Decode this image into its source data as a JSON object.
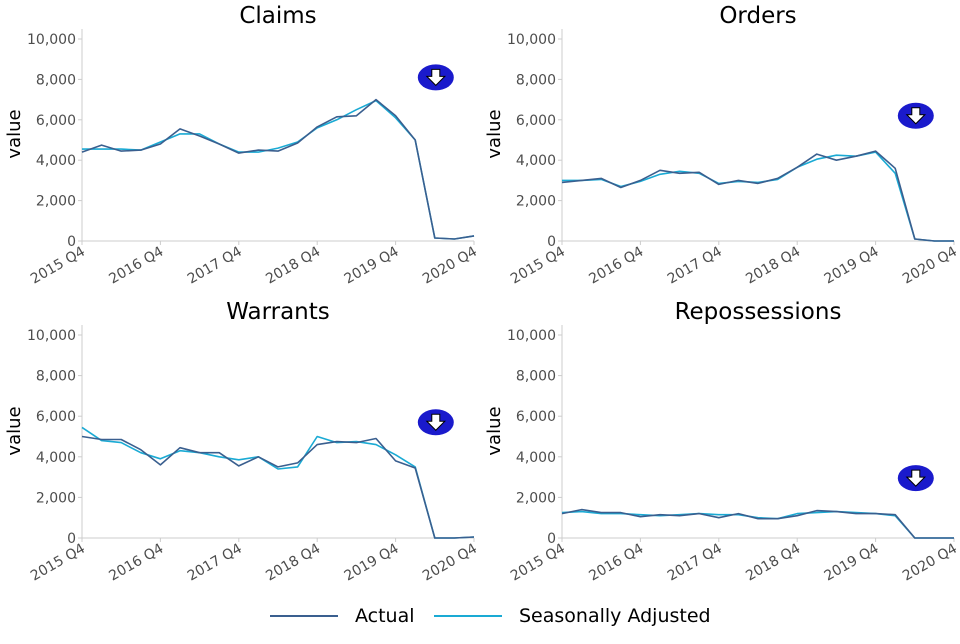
{
  "colors": {
    "actual": "#3a5f8f",
    "adjusted": "#1aaad4",
    "arrow_badge": "#1a1acc",
    "axis": "#cccccc"
  },
  "legend": [
    "Actual",
    "Seasonally Adjusted"
  ],
  "chart_data": [
    {
      "type": "line",
      "title": "Claims",
      "ylabel": "value",
      "ylim": [
        0,
        10000
      ],
      "yticks": [
        0,
        2000,
        4000,
        6000,
        8000,
        10000
      ],
      "ytick_labels": [
        "0",
        "2,000",
        "4,000",
        "6,000",
        "8,000",
        "10,000"
      ],
      "x": [
        "2015 Q4",
        "2016 Q1",
        "2016 Q2",
        "2016 Q3",
        "2016 Q4",
        "2017 Q1",
        "2017 Q2",
        "2017 Q3",
        "2017 Q4",
        "2018 Q1",
        "2018 Q2",
        "2018 Q3",
        "2018 Q4",
        "2019 Q1",
        "2019 Q2",
        "2019 Q3",
        "2019 Q4",
        "2020 Q1",
        "2020 Q2",
        "2020 Q3",
        "2020 Q4"
      ],
      "xtick_labels": [
        "2015 Q4",
        "2016 Q4",
        "2017 Q4",
        "2018 Q4",
        "2019 Q4",
        "2020 Q4"
      ],
      "series": [
        {
          "name": "Actual",
          "values": [
            4400,
            4750,
            4450,
            4500,
            4800,
            5550,
            5200,
            4800,
            4350,
            4500,
            4450,
            4850,
            5650,
            6150,
            6200,
            7000,
            6200,
            5000,
            150,
            100,
            250
          ]
        },
        {
          "name": "Seasonally Adjusted",
          "values": [
            4550,
            4550,
            4550,
            4500,
            4900,
            5300,
            5300,
            4800,
            4400,
            4400,
            4600,
            4900,
            5600,
            6000,
            6500,
            6950,
            6100,
            5000,
            150,
            100,
            250
          ]
        }
      ],
      "indicator": {
        "direction": "down",
        "value": 8100
      }
    },
    {
      "type": "line",
      "title": "Orders",
      "ylabel": "value",
      "ylim": [
        0,
        10000
      ],
      "yticks": [
        0,
        2000,
        4000,
        6000,
        8000,
        10000
      ],
      "ytick_labels": [
        "0",
        "2,000",
        "4,000",
        "6,000",
        "8,000",
        "10,000"
      ],
      "x": [
        "2015 Q4",
        "2016 Q1",
        "2016 Q2",
        "2016 Q3",
        "2016 Q4",
        "2017 Q1",
        "2017 Q2",
        "2017 Q3",
        "2017 Q4",
        "2018 Q1",
        "2018 Q2",
        "2018 Q3",
        "2018 Q4",
        "2019 Q1",
        "2019 Q2",
        "2019 Q3",
        "2019 Q4",
        "2020 Q1",
        "2020 Q2",
        "2020 Q3",
        "2020 Q4"
      ],
      "xtick_labels": [
        "2015 Q4",
        "2016 Q4",
        "2017 Q4",
        "2018 Q4",
        "2019 Q4",
        "2020 Q4"
      ],
      "series": [
        {
          "name": "Actual",
          "values": [
            2900,
            3000,
            3100,
            2650,
            3000,
            3500,
            3350,
            3400,
            2800,
            3000,
            2850,
            3100,
            3650,
            4300,
            4000,
            4200,
            4450,
            3600,
            100,
            0,
            0
          ]
        },
        {
          "name": "Seasonally Adjusted",
          "values": [
            3000,
            3000,
            3050,
            2700,
            2950,
            3300,
            3450,
            3350,
            2850,
            2950,
            2900,
            3050,
            3650,
            4050,
            4250,
            4200,
            4400,
            3350,
            100,
            0,
            0
          ]
        }
      ],
      "indicator": {
        "direction": "down",
        "value": 6200
      }
    },
    {
      "type": "line",
      "title": "Warrants",
      "ylabel": "value",
      "ylim": [
        0,
        10000
      ],
      "yticks": [
        0,
        2000,
        4000,
        6000,
        8000,
        10000
      ],
      "ytick_labels": [
        "0",
        "2,000",
        "4,000",
        "6,000",
        "8,000",
        "10,000"
      ],
      "x": [
        "2015 Q4",
        "2016 Q1",
        "2016 Q2",
        "2016 Q3",
        "2016 Q4",
        "2017 Q1",
        "2017 Q2",
        "2017 Q3",
        "2017 Q4",
        "2018 Q1",
        "2018 Q2",
        "2018 Q3",
        "2018 Q4",
        "2019 Q1",
        "2019 Q2",
        "2019 Q3",
        "2019 Q4",
        "2020 Q1",
        "2020 Q2",
        "2020 Q3",
        "2020 Q4"
      ],
      "xtick_labels": [
        "2015 Q4",
        "2016 Q4",
        "2017 Q4",
        "2018 Q4",
        "2019 Q4",
        "2020 Q4"
      ],
      "series": [
        {
          "name": "Actual",
          "values": [
            5000,
            4850,
            4850,
            4350,
            3600,
            4450,
            4200,
            4200,
            3550,
            4000,
            3500,
            3700,
            4600,
            4750,
            4700,
            4900,
            3800,
            3450,
            0,
            0,
            50
          ]
        },
        {
          "name": "Seasonally Adjusted",
          "values": [
            5450,
            4800,
            4700,
            4200,
            3900,
            4300,
            4200,
            4000,
            3850,
            4000,
            3400,
            3500,
            5000,
            4700,
            4750,
            4600,
            4100,
            3500,
            0,
            0,
            50
          ]
        }
      ],
      "indicator": {
        "direction": "down",
        "value": 5700
      }
    },
    {
      "type": "line",
      "title": "Repossessions",
      "ylabel": "value",
      "ylim": [
        0,
        10000
      ],
      "yticks": [
        0,
        2000,
        4000,
        6000,
        8000,
        10000
      ],
      "ytick_labels": [
        "0",
        "2,000",
        "4,000",
        "6,000",
        "8,000",
        "10,000"
      ],
      "x": [
        "2015 Q4",
        "2016 Q1",
        "2016 Q2",
        "2016 Q3",
        "2016 Q4",
        "2017 Q1",
        "2017 Q2",
        "2017 Q3",
        "2017 Q4",
        "2018 Q1",
        "2018 Q2",
        "2018 Q3",
        "2018 Q4",
        "2019 Q1",
        "2019 Q2",
        "2019 Q3",
        "2019 Q4",
        "2020 Q1",
        "2020 Q2",
        "2020 Q3",
        "2020 Q4"
      ],
      "xtick_labels": [
        "2015 Q4",
        "2016 Q4",
        "2017 Q4",
        "2018 Q4",
        "2019 Q4",
        "2020 Q4"
      ],
      "series": [
        {
          "name": "Actual",
          "values": [
            1200,
            1400,
            1250,
            1250,
            1050,
            1150,
            1100,
            1200,
            1000,
            1200,
            950,
            950,
            1100,
            1350,
            1300,
            1200,
            1200,
            1150,
            0,
            0,
            0
          ]
        },
        {
          "name": "Seasonally Adjusted",
          "values": [
            1250,
            1300,
            1200,
            1200,
            1150,
            1100,
            1150,
            1200,
            1150,
            1150,
            1000,
            950,
            1200,
            1250,
            1300,
            1250,
            1200,
            1100,
            0,
            0,
            0
          ]
        }
      ],
      "indicator": {
        "direction": "down",
        "value": 2950
      }
    }
  ]
}
